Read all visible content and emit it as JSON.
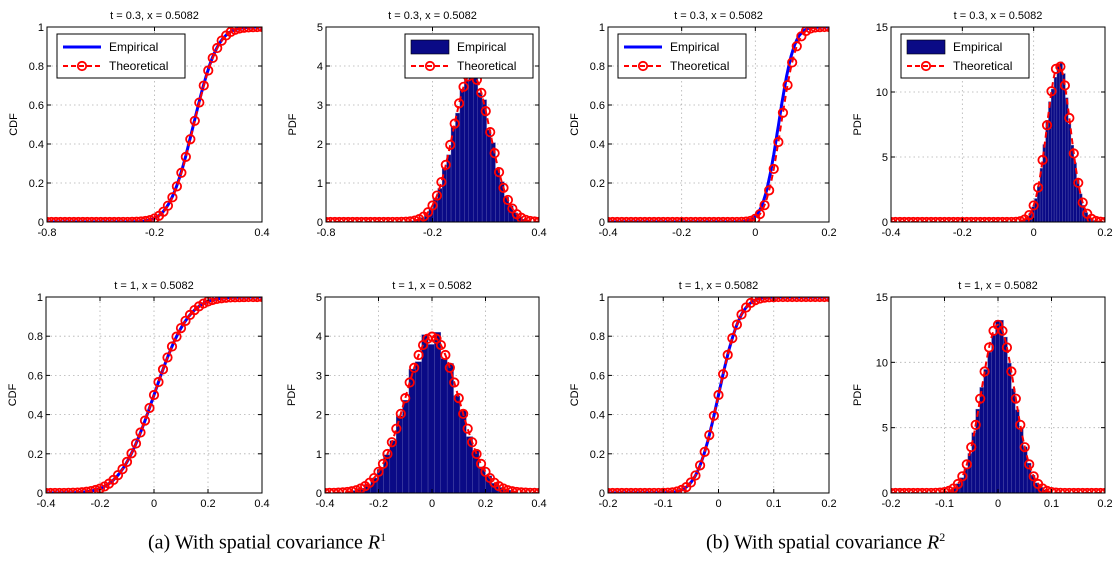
{
  "figure": {
    "captions": [
      {
        "prefix": "(a)  With spatial covariance ",
        "symbol": "R",
        "sup": "1"
      },
      {
        "prefix": "(b)  With spatial covariance ",
        "symbol": "R",
        "sup": "2"
      }
    ]
  },
  "colors": {
    "empirical": "#0000ff",
    "histogram_fill": "#0a0a86",
    "histogram_edge": "#5a5ab0",
    "theoretical": "#ff0000",
    "grid": "#b0b0b0"
  },
  "chart_data": [
    {
      "type": "line",
      "title": "t = 0.3, x = 0.5082",
      "xlabel": "",
      "ylabel": "CDF",
      "xlim": [
        -0.8,
        0.4
      ],
      "ylim": [
        0,
        1
      ],
      "xticks": [
        "-0.8",
        "-0.2",
        "0.4"
      ],
      "yticks": [
        "0",
        "0.2",
        "0.4",
        "0.6",
        "0.8",
        "1"
      ],
      "grid": true,
      "legend": {
        "location": "top-left",
        "entries": [
          "Empirical",
          "Theoretical"
        ]
      },
      "dist": {
        "mu": 0.02,
        "sigma": 0.105
      },
      "series": [
        {
          "name": "Empirical",
          "kind": "line"
        },
        {
          "name": "Theoretical",
          "kind": "markers"
        }
      ]
    },
    {
      "type": "bar",
      "title": "t = 0.3, x = 0.5082",
      "xlabel": "",
      "ylabel": "PDF",
      "xlim": [
        -0.8,
        0.4
      ],
      "ylim": [
        0,
        5
      ],
      "xticks": [
        "-0.8",
        "-0.2",
        "0.4"
      ],
      "yticks": [
        "0",
        "1",
        "2",
        "3",
        "4",
        "5"
      ],
      "grid": true,
      "legend": {
        "location": "top-right",
        "entries": [
          "Empirical",
          "Theoretical"
        ]
      },
      "dist": {
        "mu": 0.02,
        "sigma": 0.105
      },
      "series": [
        {
          "name": "Empirical",
          "kind": "histogram"
        },
        {
          "name": "Theoretical",
          "kind": "markers"
        }
      ]
    },
    {
      "type": "line",
      "title": "t = 0.3, x = 0.5082",
      "xlabel": "",
      "ylabel": "CDF",
      "xlim": [
        -0.4,
        0.2
      ],
      "ylim": [
        0,
        1
      ],
      "xticks": [
        "-0.4",
        "-0.2",
        "0",
        "0.2"
      ],
      "yticks": [
        "0",
        "0.2",
        "0.4",
        "0.6",
        "0.8",
        "1"
      ],
      "grid": true,
      "legend": {
        "location": "top-left",
        "entries": [
          "Empirical",
          "Theoretical"
        ]
      },
      "dist": {
        "mu": 0.07,
        "sigma": 0.033
      },
      "series": [
        {
          "name": "Empirical",
          "kind": "line"
        },
        {
          "name": "Theoretical",
          "kind": "markers"
        }
      ]
    },
    {
      "type": "bar",
      "title": "t = 0.3, x = 0.5082",
      "xlabel": "",
      "ylabel": "PDF",
      "xlim": [
        -0.4,
        0.2
      ],
      "ylim": [
        0,
        15
      ],
      "xticks": [
        "-0.4",
        "-0.2",
        "0",
        "0.2"
      ],
      "yticks": [
        "0",
        "5",
        "10",
        "15"
      ],
      "grid": true,
      "legend": {
        "location": "top-left",
        "entries": [
          "Empirical",
          "Theoretical"
        ]
      },
      "dist": {
        "mu": 0.07,
        "sigma": 0.033
      },
      "series": [
        {
          "name": "Empirical",
          "kind": "histogram"
        },
        {
          "name": "Theoretical",
          "kind": "markers"
        }
      ]
    },
    {
      "type": "line",
      "title": "t = 1, x = 0.5082",
      "xlabel": "",
      "ylabel": "CDF",
      "xlim": [
        -0.4,
        0.4
      ],
      "ylim": [
        0,
        1
      ],
      "xticks": [
        "-0.4",
        "-0.2",
        "0",
        "0.2",
        "0.4"
      ],
      "yticks": [
        "0",
        "0.2",
        "0.4",
        "0.6",
        "0.8",
        "1"
      ],
      "grid": true,
      "legend": null,
      "dist": {
        "mu": 0.0,
        "sigma": 0.1
      },
      "series": [
        {
          "name": "Empirical",
          "kind": "line"
        },
        {
          "name": "Theoretical",
          "kind": "markers"
        }
      ]
    },
    {
      "type": "bar",
      "title": "t = 1, x = 0.5082",
      "xlabel": "",
      "ylabel": "PDF",
      "xlim": [
        -0.4,
        0.4
      ],
      "ylim": [
        0,
        5
      ],
      "xticks": [
        "-0.4",
        "-0.2",
        "0",
        "0.2",
        "0.4"
      ],
      "yticks": [
        "0",
        "1",
        "2",
        "3",
        "4",
        "5"
      ],
      "grid": true,
      "legend": null,
      "dist": {
        "mu": 0.0,
        "sigma": 0.1
      },
      "series": [
        {
          "name": "Empirical",
          "kind": "histogram"
        },
        {
          "name": "Theoretical",
          "kind": "markers"
        }
      ]
    },
    {
      "type": "line",
      "title": "t = 1, x = 0.5082",
      "xlabel": "",
      "ylabel": "CDF",
      "xlim": [
        -0.2,
        0.2
      ],
      "ylim": [
        0,
        1
      ],
      "xticks": [
        "-0.2",
        "-0.1",
        "0",
        "0.1",
        "0.2"
      ],
      "yticks": [
        "0",
        "0.2",
        "0.4",
        "0.6",
        "0.8",
        "1"
      ],
      "grid": true,
      "legend": null,
      "dist": {
        "mu": 0.0,
        "sigma": 0.031
      },
      "series": [
        {
          "name": "Empirical",
          "kind": "line"
        },
        {
          "name": "Theoretical",
          "kind": "markers"
        }
      ]
    },
    {
      "type": "bar",
      "title": "t = 1, x = 0.5082",
      "xlabel": "",
      "ylabel": "PDF",
      "xlim": [
        -0.2,
        0.2
      ],
      "ylim": [
        0,
        15
      ],
      "xticks": [
        "-0.2",
        "-0.1",
        "0",
        "0.1",
        "0.2"
      ],
      "yticks": [
        "0",
        "5",
        "10",
        "15"
      ],
      "grid": true,
      "legend": null,
      "dist": {
        "mu": 0.0,
        "sigma": 0.031
      },
      "series": [
        {
          "name": "Empirical",
          "kind": "histogram"
        },
        {
          "name": "Theoretical",
          "kind": "markers"
        }
      ]
    }
  ]
}
